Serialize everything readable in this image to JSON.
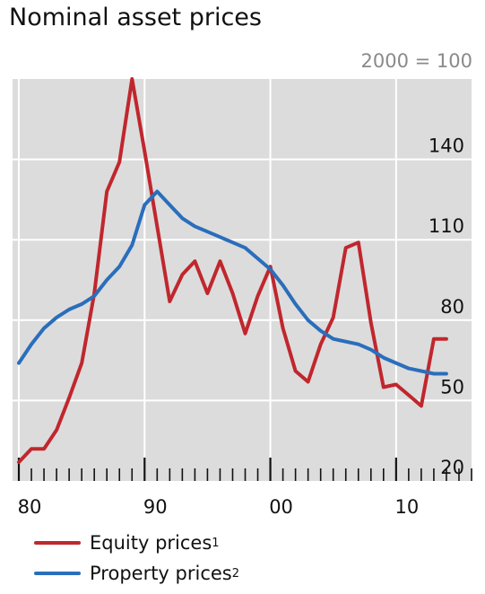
{
  "chart_data": {
    "type": "line",
    "title": "Nominal asset prices",
    "unit_label": "2000 = 100",
    "x": [
      1980,
      1981,
      1982,
      1983,
      1984,
      1985,
      1986,
      1987,
      1988,
      1989,
      1990,
      1991,
      1992,
      1993,
      1994,
      1995,
      1996,
      1997,
      1998,
      1999,
      2000,
      2001,
      2002,
      2003,
      2004,
      2005,
      2006,
      2007,
      2008,
      2009,
      2010,
      2011,
      2012,
      2013,
      2014
    ],
    "x_ticks": [
      1980,
      1990,
      2000,
      2010
    ],
    "x_tick_labels": [
      "80",
      "90",
      "00",
      "10"
    ],
    "xlim": [
      1979.5,
      2016
    ],
    "ylim": [
      20,
      170
    ],
    "y_ticks": [
      20,
      50,
      80,
      110,
      140
    ],
    "y_tick_labels": [
      "20",
      "50",
      "80",
      "110",
      "140"
    ],
    "y_axis_side": "right",
    "grid": true,
    "legend_placement": "bottom-left",
    "series": [
      {
        "name": "Equity prices",
        "sup": "1",
        "color": "#c0272d",
        "values": [
          27,
          32,
          32,
          39,
          51,
          64,
          90,
          128,
          139,
          170,
          143,
          115,
          87,
          97,
          102,
          90,
          102,
          90,
          75,
          89,
          100,
          77,
          61,
          57,
          71,
          81,
          107,
          109,
          79,
          55,
          56,
          52,
          48,
          73,
          73
        ]
      },
      {
        "name": "Property prices",
        "sup": "2",
        "color": "#2a6ebb",
        "values": [
          64,
          71,
          77,
          81,
          84,
          86,
          89,
          95,
          100,
          108,
          123,
          128,
          123,
          118,
          115,
          113,
          111,
          109,
          107,
          103,
          99,
          93,
          86,
          80,
          76,
          73,
          72,
          71,
          69,
          66,
          64,
          62,
          61,
          60,
          60
        ]
      }
    ]
  }
}
